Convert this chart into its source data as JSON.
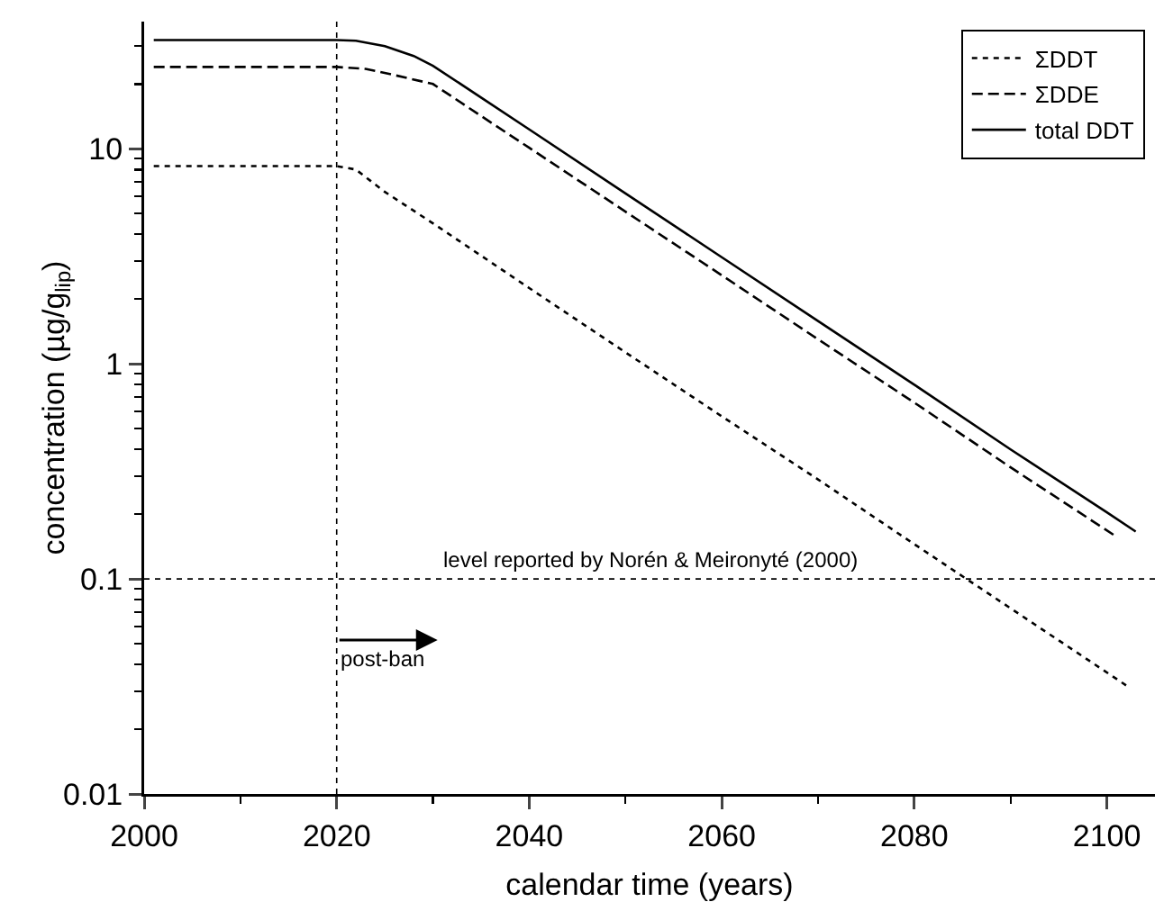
{
  "chart_data": {
    "type": "line",
    "xlabel": "calendar time (years)",
    "ylabel": "concentration (µg/g$_{lip}$)",
    "log": "y",
    "xlim": [
      2000,
      2105
    ],
    "ylim": [
      0.01,
      39
    ],
    "xticks": [
      2000,
      {
        "value": 2010,
        "label": null
      },
      2020,
      {
        "value": 2030,
        "label": null
      },
      2040,
      {
        "value": 2050,
        "label": null
      },
      2060,
      {
        "value": 2070,
        "label": null
      },
      2080,
      {
        "value": 2090,
        "label": null
      },
      2100
    ],
    "yticks": [
      0.01,
      {
        "value": 0.02,
        "label": null
      },
      {
        "value": 0.03,
        "label": null
      },
      {
        "value": 0.04,
        "label": null
      },
      {
        "value": 0.05,
        "label": null
      },
      {
        "value": 0.06,
        "label": null
      },
      {
        "value": 0.07,
        "label": null
      },
      {
        "value": 0.08,
        "label": null
      },
      {
        "value": 0.09,
        "label": null
      },
      0.1,
      {
        "value": 0.2,
        "label": null
      },
      {
        "value": 0.3,
        "label": null
      },
      {
        "value": 0.4,
        "label": null
      },
      {
        "value": 0.5,
        "label": null
      },
      {
        "value": 0.6,
        "label": null
      },
      {
        "value": 0.7,
        "label": null
      },
      {
        "value": 0.8,
        "label": null
      },
      {
        "value": 0.9,
        "label": null
      },
      1,
      {
        "value": 2,
        "label": null
      },
      {
        "value": 3,
        "label": null
      },
      {
        "value": 4,
        "label": null
      },
      {
        "value": 5,
        "label": null
      },
      {
        "value": 6,
        "label": null
      },
      {
        "value": 7,
        "label": null
      },
      {
        "value": 8,
        "label": null
      },
      {
        "value": 9,
        "label": null
      },
      10,
      {
        "value": 20,
        "label": null
      },
      {
        "value": 30,
        "label": null
      }
    ],
    "grid": false,
    "legend": "top right",
    "marker": "none",
    "series": [
      {
        "name": "ΣDDT",
        "color": "#000000",
        "line_style": "dotted",
        "x": [
          2001,
          2020,
          2022,
          2025,
          2030,
          2040,
          2050,
          2060,
          2070,
          2080,
          2090,
          2102
        ],
        "values": [
          8.3,
          8.3,
          8.0,
          6.3,
          4.5,
          2.25,
          1.13,
          0.57,
          0.29,
          0.145,
          0.073,
          0.032
        ]
      },
      {
        "name": "ΣDDE",
        "color": "#000000",
        "line_style": "dashed",
        "x": [
          2001,
          2020,
          2023,
          2026,
          2030,
          2035,
          2040,
          2050,
          2060,
          2070,
          2080,
          2090,
          2101
        ],
        "values": [
          24,
          24,
          23.5,
          22,
          20,
          14.2,
          10.1,
          5.1,
          2.58,
          1.3,
          0.66,
          0.33,
          0.157
        ]
      },
      {
        "name": "total DDT",
        "color": "#000000",
        "line_style": "solid",
        "x": [
          2001,
          2020,
          2022,
          2025,
          2028,
          2030,
          2035,
          2040,
          2050,
          2060,
          2070,
          2080,
          2090,
          2100,
          2103
        ],
        "values": [
          32,
          32,
          31.8,
          30,
          27,
          24.3,
          17.3,
          12.3,
          6.2,
          3.13,
          1.58,
          0.8,
          0.4,
          0.204,
          0.166
        ]
      }
    ],
    "ref_lines": [
      {
        "axis": "x",
        "value": 2020,
        "line_style": "dotted",
        "color": "#000000"
      },
      {
        "axis": "y",
        "value": 0.1,
        "line_style": "dotted",
        "color": "#000000",
        "label": "level reported by Norén & Meironyté (2000)"
      }
    ],
    "annotations": [
      {
        "text": "post-ban",
        "x": 2020,
        "y": 0.052
      }
    ]
  }
}
